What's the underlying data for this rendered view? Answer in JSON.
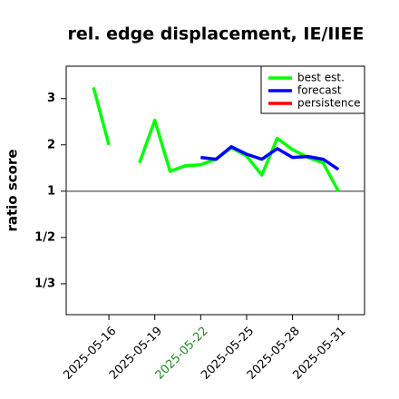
{
  "chart_data": {
    "type": "line",
    "title": "rel. edge displacement, IE/IIEE",
    "y_label": "ratio score",
    "y_scale": "ratio",
    "x": [
      "2025-05-15",
      "2025-05-16",
      "2025-05-17",
      "2025-05-18",
      "2025-05-19",
      "2025-05-20",
      "2025-05-21",
      "2025-05-22",
      "2025-05-23",
      "2025-05-24",
      "2025-05-25",
      "2025-05-26",
      "2025-05-27",
      "2025-05-28",
      "2025-05-29",
      "2025-05-30",
      "2025-05-31"
    ],
    "series": [
      {
        "name": "best est.",
        "color": "#00ff00",
        "values": [
          3.24,
          2.0,
          null,
          1.61,
          2.53,
          1.43,
          1.55,
          1.57,
          1.69,
          1.94,
          1.76,
          1.35,
          2.14,
          1.9,
          1.73,
          1.61,
          1.0
        ]
      },
      {
        "name": "forecast",
        "color": "#0000ff",
        "values": [
          null,
          null,
          null,
          null,
          null,
          null,
          null,
          1.73,
          1.69,
          1.96,
          1.8,
          1.69,
          1.92,
          1.73,
          1.75,
          1.69,
          1.47
        ]
      },
      {
        "name": "persistence",
        "color": "#ff0000",
        "values": [
          null,
          null,
          null,
          null,
          null,
          null,
          null,
          null,
          null,
          null,
          null,
          null,
          null,
          null,
          null,
          null,
          null
        ]
      }
    ],
    "xlim": [
      "2025-05-13T05:00",
      "2025-06-01T17:00"
    ],
    "xticks": [
      "2025-05-16",
      "2025-05-19",
      "2025-05-22",
      "2025-05-25",
      "2025-05-28",
      "2025-05-31"
    ],
    "xtick_highlight": {
      "index": 2,
      "color": "#228b22"
    },
    "ylim": [
      0.2727,
      3.7
    ],
    "yticks": [
      3,
      2,
      1,
      {
        "value": 0.5,
        "label": "1/2"
      },
      {
        "value": 0.333333,
        "label": "1/3"
      }
    ],
    "reference_line": 1,
    "legend": "top-right"
  }
}
